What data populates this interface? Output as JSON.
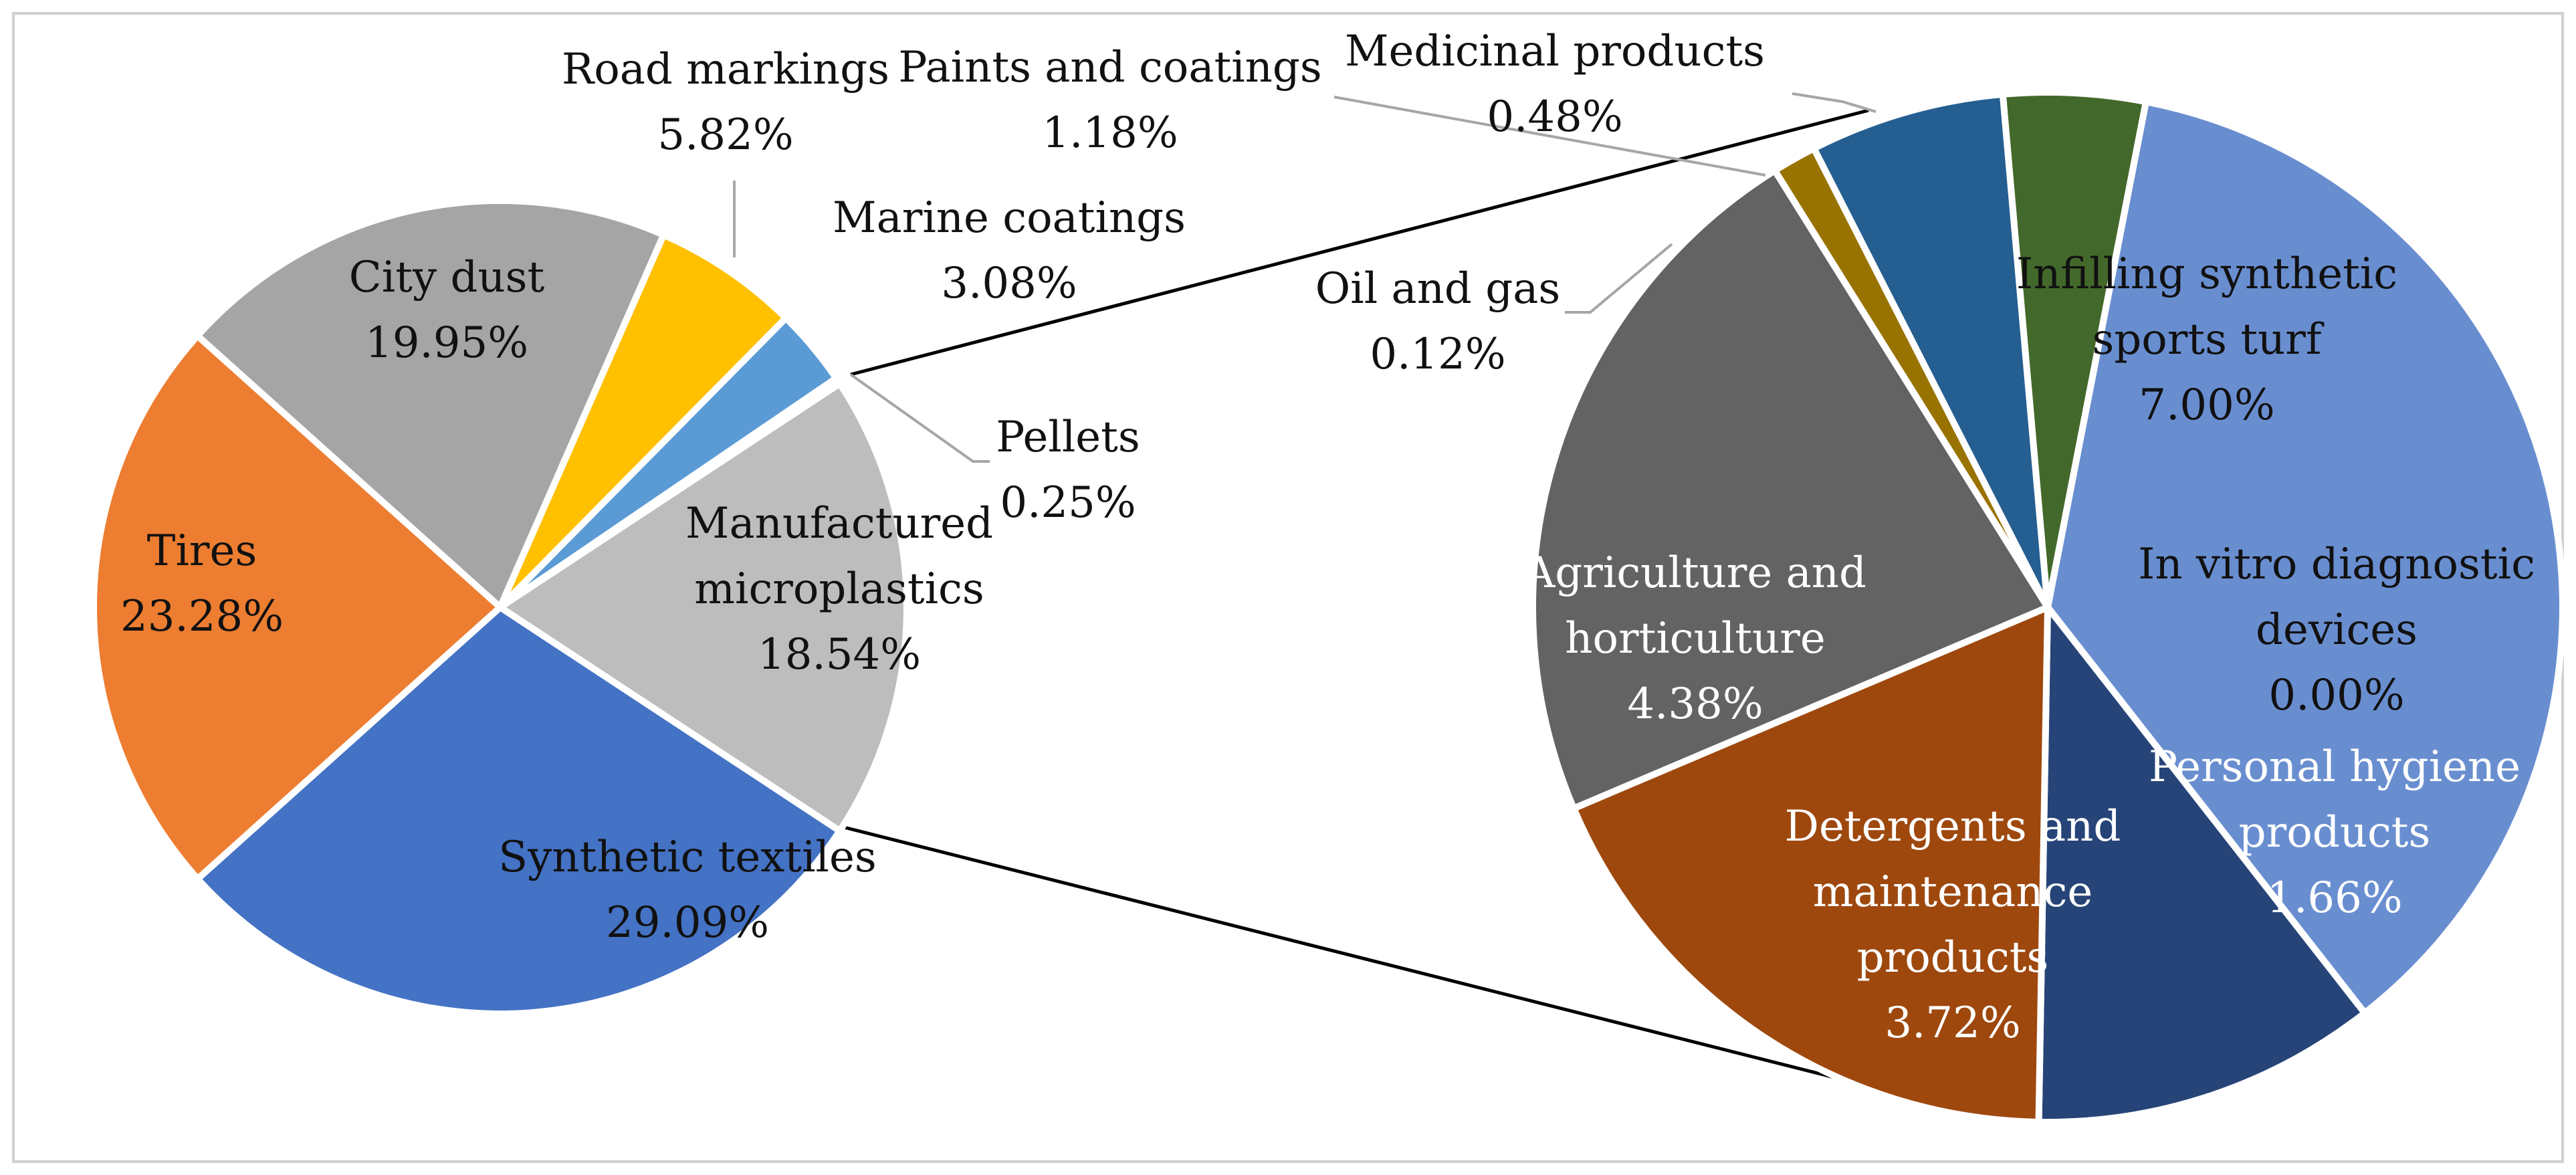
{
  "chart_data": [
    {
      "type": "pie",
      "title": "",
      "slices": [
        {
          "label": "Synthetic textiles",
          "value_text": "29.09%",
          "value": 29.09,
          "color": "#4472C4"
        },
        {
          "label": "Tires",
          "value_text": "23.28%",
          "value": 23.28,
          "color": "#ED7D31"
        },
        {
          "label": "City dust",
          "value_text": "19.95%",
          "value": 19.95,
          "color": "#A5A5A5"
        },
        {
          "label": "Road markings",
          "value_text": "5.82%",
          "value": 5.82,
          "color": "#FFC000"
        },
        {
          "label": "Marine coatings",
          "value_text": "3.08%",
          "value": 3.08,
          "color": "#5B9BD5"
        },
        {
          "label": "Pellets",
          "value_text": "0.25%",
          "value": 0.25,
          "color": "#70AD47"
        },
        {
          "label": "Manufactured microplastics",
          "value_text": "18.54%",
          "value": 18.54,
          "color": "#BDBDBD"
        }
      ]
    },
    {
      "type": "pie",
      "title": "",
      "breakdown_of": "Manufactured microplastics",
      "slices": [
        {
          "label": "Infilling synthetic sports turf",
          "value_text": "7.00%",
          "value": 7.0,
          "color": "#698ED0"
        },
        {
          "label": "In vitro diagnostic devices",
          "value_text": "0.00%",
          "value": 0.0,
          "color": "#698ED0"
        },
        {
          "label": "Personal hygiene products",
          "value_text": "1.66%",
          "value": 1.66,
          "color": "#264478"
        },
        {
          "label": "Detergents and maintenance products",
          "value_text": "3.72%",
          "value": 3.72,
          "color": "#9E480E"
        },
        {
          "label": "Agriculture and horticulture",
          "value_text": "4.38%",
          "value": 4.38,
          "color": "#636363"
        },
        {
          "label": "Oil and gas",
          "value_text": "0.12%",
          "value": 0.12,
          "color": "#997300"
        },
        {
          "label": "Paints and coatings",
          "value_text": "1.18%",
          "value": 1.18,
          "color": "#255E91"
        },
        {
          "label": "Medicinal products",
          "value_text": "0.48%",
          "value": 0.48,
          "color": "#43682B"
        }
      ]
    }
  ]
}
